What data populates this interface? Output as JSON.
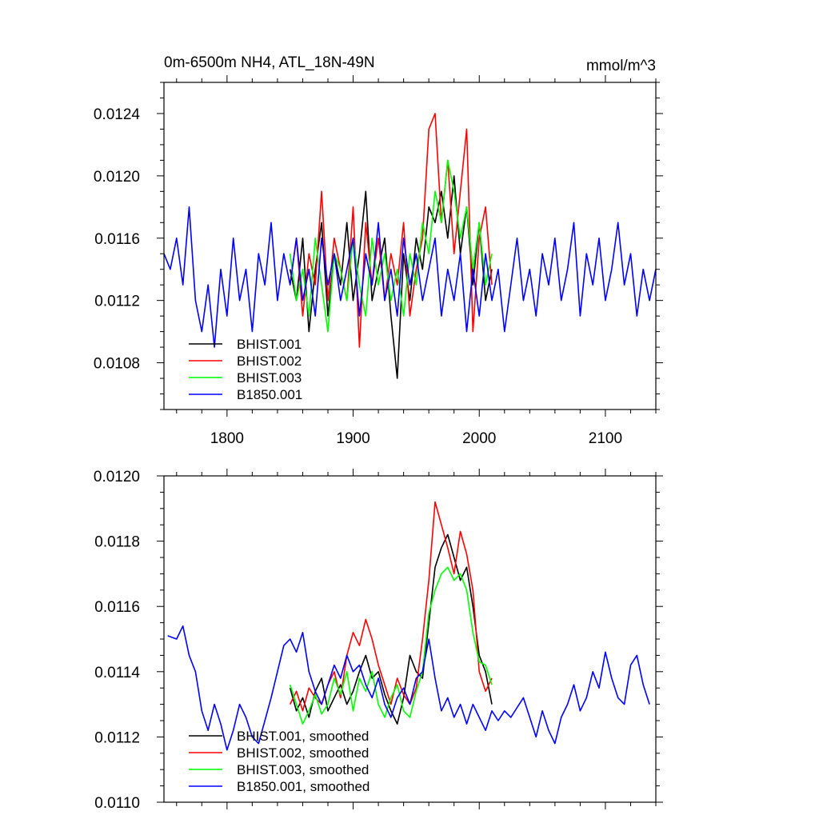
{
  "chart_data": [
    {
      "type": "line",
      "title": "0m-6500m NH4, ATL_18N-49N",
      "units": "mmol/m^3",
      "xlim": [
        1750,
        2140
      ],
      "ylim": [
        0.0105,
        0.0126
      ],
      "xticks": [
        1800,
        1900,
        2000,
        2100
      ],
      "xtick_labels": [
        "1800",
        "1900",
        "2000",
        "2100"
      ],
      "yticks": [
        0.0108,
        0.0112,
        0.0116,
        0.012,
        0.0124
      ],
      "ytick_labels": [
        "0.0108",
        "0.0112",
        "0.0116",
        "0.0120",
        "0.0124"
      ],
      "grid": false,
      "legend_position": "bottom-left",
      "series": [
        {
          "name": "BHIST.001",
          "color": "#000000",
          "x": [
            1850,
            1855,
            1860,
            1865,
            1870,
            1875,
            1880,
            1885,
            1890,
            1895,
            1900,
            1905,
            1910,
            1915,
            1920,
            1925,
            1930,
            1935,
            1940,
            1945,
            1950,
            1955,
            1960,
            1965,
            1970,
            1975,
            1980,
            1985,
            1990,
            1995,
            2000,
            2005,
            2010
          ],
          "y": [
            0.0114,
            0.0112,
            0.0116,
            0.011,
            0.0114,
            0.0117,
            0.0111,
            0.0115,
            0.0113,
            0.0117,
            0.0112,
            0.0115,
            0.0119,
            0.0112,
            0.0114,
            0.0116,
            0.0111,
            0.0107,
            0.0115,
            0.0112,
            0.0116,
            0.0114,
            0.0118,
            0.0117,
            0.0119,
            0.0116,
            0.012,
            0.0115,
            0.0118,
            0.0113,
            0.0117,
            0.0112,
            0.0114
          ]
        },
        {
          "name": "BHIST.002",
          "color": "#ff0000",
          "x": [
            1850,
            1855,
            1860,
            1865,
            1870,
            1875,
            1880,
            1885,
            1890,
            1895,
            1900,
            1905,
            1910,
            1915,
            1920,
            1925,
            1930,
            1935,
            1940,
            1945,
            1950,
            1955,
            1960,
            1965,
            1970,
            1975,
            1980,
            1985,
            1990,
            1995,
            2000,
            2005,
            2010
          ],
          "y": [
            0.0113,
            0.0116,
            0.0111,
            0.0115,
            0.0113,
            0.0119,
            0.0112,
            0.0116,
            0.0114,
            0.0112,
            0.0118,
            0.0109,
            0.0117,
            0.0113,
            0.0116,
            0.0112,
            0.0115,
            0.0113,
            0.0117,
            0.0111,
            0.0114,
            0.0116,
            0.0123,
            0.0124,
            0.0117,
            0.0121,
            0.0115,
            0.0119,
            0.0123,
            0.011,
            0.0116,
            0.0118,
            0.0113
          ]
        },
        {
          "name": "BHIST.003",
          "color": "#00ff00",
          "x": [
            1850,
            1855,
            1860,
            1865,
            1870,
            1875,
            1880,
            1885,
            1890,
            1895,
            1900,
            1905,
            1910,
            1915,
            1920,
            1925,
            1930,
            1935,
            1940,
            1945,
            1950,
            1955,
            1960,
            1965,
            1970,
            1975,
            1980,
            1985,
            1990,
            1995,
            2000,
            2005,
            2010
          ],
          "y": [
            0.0115,
            0.0112,
            0.0114,
            0.0111,
            0.0116,
            0.0113,
            0.011,
            0.0115,
            0.0114,
            0.0112,
            0.0116,
            0.0113,
            0.0111,
            0.0116,
            0.0113,
            0.0115,
            0.0112,
            0.0114,
            0.0111,
            0.0115,
            0.0113,
            0.0117,
            0.0115,
            0.0119,
            0.0117,
            0.0121,
            0.0119,
            0.0116,
            0.0118,
            0.0114,
            0.0117,
            0.0113,
            0.0115
          ]
        },
        {
          "name": "B1850.001",
          "color": "#0000ff",
          "x": [
            1750,
            1755,
            1760,
            1765,
            1770,
            1775,
            1780,
            1785,
            1790,
            1795,
            1800,
            1805,
            1810,
            1815,
            1820,
            1825,
            1830,
            1835,
            1840,
            1845,
            1850,
            1855,
            1860,
            1865,
            1870,
            1875,
            1880,
            1885,
            1890,
            1895,
            1900,
            1905,
            1910,
            1915,
            1920,
            1925,
            1930,
            1935,
            1940,
            1945,
            1950,
            1955,
            1960,
            1965,
            1970,
            1975,
            1980,
            1985,
            1990,
            1995,
            2000,
            2005,
            2010,
            2015,
            2020,
            2025,
            2030,
            2035,
            2040,
            2045,
            2050,
            2055,
            2060,
            2065,
            2070,
            2075,
            2080,
            2085,
            2090,
            2095,
            2100,
            2105,
            2110,
            2115,
            2120,
            2125,
            2130,
            2135,
            2140
          ],
          "y": [
            0.0115,
            0.0114,
            0.0116,
            0.0113,
            0.0118,
            0.0112,
            0.011,
            0.0113,
            0.0109,
            0.0114,
            0.0111,
            0.0116,
            0.0112,
            0.0114,
            0.011,
            0.0115,
            0.0113,
            0.0117,
            0.0112,
            0.0115,
            0.0113,
            0.0116,
            0.0112,
            0.0114,
            0.0111,
            0.0116,
            0.0113,
            0.0115,
            0.0112,
            0.0114,
            0.0116,
            0.0111,
            0.0115,
            0.0113,
            0.0117,
            0.0112,
            0.0114,
            0.0111,
            0.0116,
            0.0113,
            0.0115,
            0.0112,
            0.0114,
            0.0116,
            0.0111,
            0.0114,
            0.0112,
            0.0115,
            0.011,
            0.0114,
            0.0111,
            0.0115,
            0.0112,
            0.0114,
            0.011,
            0.0113,
            0.0116,
            0.0112,
            0.0114,
            0.0111,
            0.0115,
            0.0113,
            0.0116,
            0.0112,
            0.0114,
            0.0117,
            0.0111,
            0.0115,
            0.0113,
            0.0116,
            0.0112,
            0.0114,
            0.0117,
            0.0113,
            0.0115,
            0.0111,
            0.0114,
            0.0112,
            0.0114
          ]
        }
      ]
    },
    {
      "type": "line",
      "xlim": [
        1750,
        2140
      ],
      "ylim": [
        0.011,
        0.012
      ],
      "xticks": [
        1800,
        1900,
        2000,
        2100
      ],
      "xtick_labels": [],
      "yticks": [
        0.011,
        0.0112,
        0.0114,
        0.0116,
        0.0118,
        0.012
      ],
      "ytick_labels": [
        "0.0110",
        "0.0112",
        "0.0114",
        "0.0116",
        "0.0118",
        "0.0120"
      ],
      "grid": false,
      "legend_position": "bottom-left",
      "series": [
        {
          "name": "BHIST.001, smoothed",
          "color": "#000000",
          "x": [
            1850,
            1855,
            1860,
            1865,
            1870,
            1875,
            1880,
            1885,
            1890,
            1895,
            1900,
            1905,
            1910,
            1915,
            1920,
            1925,
            1930,
            1935,
            1940,
            1945,
            1950,
            1955,
            1960,
            1965,
            1970,
            1975,
            1980,
            1985,
            1990,
            1995,
            2000,
            2005,
            2010
          ],
          "y": [
            0.01135,
            0.01128,
            0.01132,
            0.01126,
            0.01134,
            0.01138,
            0.01128,
            0.01132,
            0.01136,
            0.0113,
            0.01134,
            0.0114,
            0.01145,
            0.01138,
            0.0114,
            0.01133,
            0.01128,
            0.01124,
            0.01132,
            0.01145,
            0.0114,
            0.01138,
            0.01155,
            0.01172,
            0.01178,
            0.01182,
            0.01175,
            0.01168,
            0.01172,
            0.0116,
            0.01145,
            0.0114,
            0.0113
          ]
        },
        {
          "name": "BHIST.002, smoothed",
          "color": "#ff0000",
          "x": [
            1850,
            1855,
            1860,
            1865,
            1870,
            1875,
            1880,
            1885,
            1890,
            1895,
            1900,
            1905,
            1910,
            1915,
            1920,
            1925,
            1930,
            1935,
            1940,
            1945,
            1950,
            1955,
            1960,
            1965,
            1970,
            1975,
            1980,
            1985,
            1990,
            1995,
            2000,
            2005,
            2010
          ],
          "y": [
            0.0113,
            0.01134,
            0.01128,
            0.01135,
            0.01132,
            0.0113,
            0.01136,
            0.0114,
            0.01132,
            0.01145,
            0.01152,
            0.01148,
            0.01156,
            0.0115,
            0.01142,
            0.01136,
            0.0113,
            0.01138,
            0.01133,
            0.0113,
            0.01135,
            0.0115,
            0.01168,
            0.01192,
            0.01185,
            0.01178,
            0.0117,
            0.01183,
            0.01176,
            0.01165,
            0.0114,
            0.01134,
            0.01138
          ]
        },
        {
          "name": "BHIST.003, smoothed",
          "color": "#00ff00",
          "x": [
            1850,
            1855,
            1860,
            1865,
            1870,
            1875,
            1880,
            1885,
            1890,
            1895,
            1900,
            1905,
            1910,
            1915,
            1920,
            1925,
            1930,
            1935,
            1940,
            1945,
            1950,
            1955,
            1960,
            1965,
            1970,
            1975,
            1980,
            1985,
            1990,
            1995,
            2000,
            2005,
            2010
          ],
          "y": [
            0.01136,
            0.0113,
            0.01124,
            0.01128,
            0.01133,
            0.01127,
            0.0113,
            0.01138,
            0.01133,
            0.0114,
            0.01128,
            0.01138,
            0.01134,
            0.0114,
            0.0113,
            0.01126,
            0.01132,
            0.01136,
            0.01128,
            0.01126,
            0.01134,
            0.0114,
            0.01158,
            0.01165,
            0.0117,
            0.01172,
            0.01168,
            0.0117,
            0.01165,
            0.01152,
            0.01143,
            0.01142,
            0.01136
          ]
        },
        {
          "name": "B1850.001, smoothed",
          "color": "#0000ff",
          "x": [
            1753,
            1760,
            1765,
            1770,
            1775,
            1780,
            1785,
            1790,
            1795,
            1800,
            1805,
            1810,
            1815,
            1820,
            1825,
            1830,
            1835,
            1840,
            1845,
            1850,
            1855,
            1860,
            1865,
            1870,
            1875,
            1880,
            1885,
            1890,
            1895,
            1900,
            1905,
            1910,
            1915,
            1920,
            1925,
            1930,
            1935,
            1940,
            1945,
            1950,
            1955,
            1960,
            1965,
            1970,
            1975,
            1980,
            1985,
            1990,
            1995,
            2000,
            2005,
            2010,
            2015,
            2020,
            2025,
            2030,
            2035,
            2040,
            2045,
            2050,
            2055,
            2060,
            2065,
            2070,
            2075,
            2080,
            2085,
            2090,
            2095,
            2100,
            2105,
            2110,
            2115,
            2120,
            2125,
            2130,
            2135
          ],
          "y": [
            0.01151,
            0.0115,
            0.01154,
            0.01145,
            0.0114,
            0.01128,
            0.01122,
            0.0113,
            0.01124,
            0.01116,
            0.01122,
            0.0113,
            0.01126,
            0.0112,
            0.01118,
            0.01125,
            0.01132,
            0.0114,
            0.01148,
            0.0115,
            0.01146,
            0.01152,
            0.0114,
            0.01134,
            0.0113,
            0.01136,
            0.01142,
            0.01138,
            0.01145,
            0.0114,
            0.01142,
            0.01136,
            0.01132,
            0.01138,
            0.0113,
            0.01126,
            0.01132,
            0.01135,
            0.0113,
            0.01138,
            0.0114,
            0.0115,
            0.01138,
            0.01128,
            0.01132,
            0.01126,
            0.0113,
            0.01124,
            0.0113,
            0.01126,
            0.01122,
            0.01128,
            0.01125,
            0.01128,
            0.01126,
            0.01129,
            0.01132,
            0.01126,
            0.0112,
            0.01128,
            0.01122,
            0.01118,
            0.01126,
            0.0113,
            0.01136,
            0.01128,
            0.01132,
            0.0114,
            0.01135,
            0.01146,
            0.01138,
            0.01132,
            0.0113,
            0.01142,
            0.01145,
            0.01136,
            0.0113
          ]
        }
      ]
    }
  ]
}
